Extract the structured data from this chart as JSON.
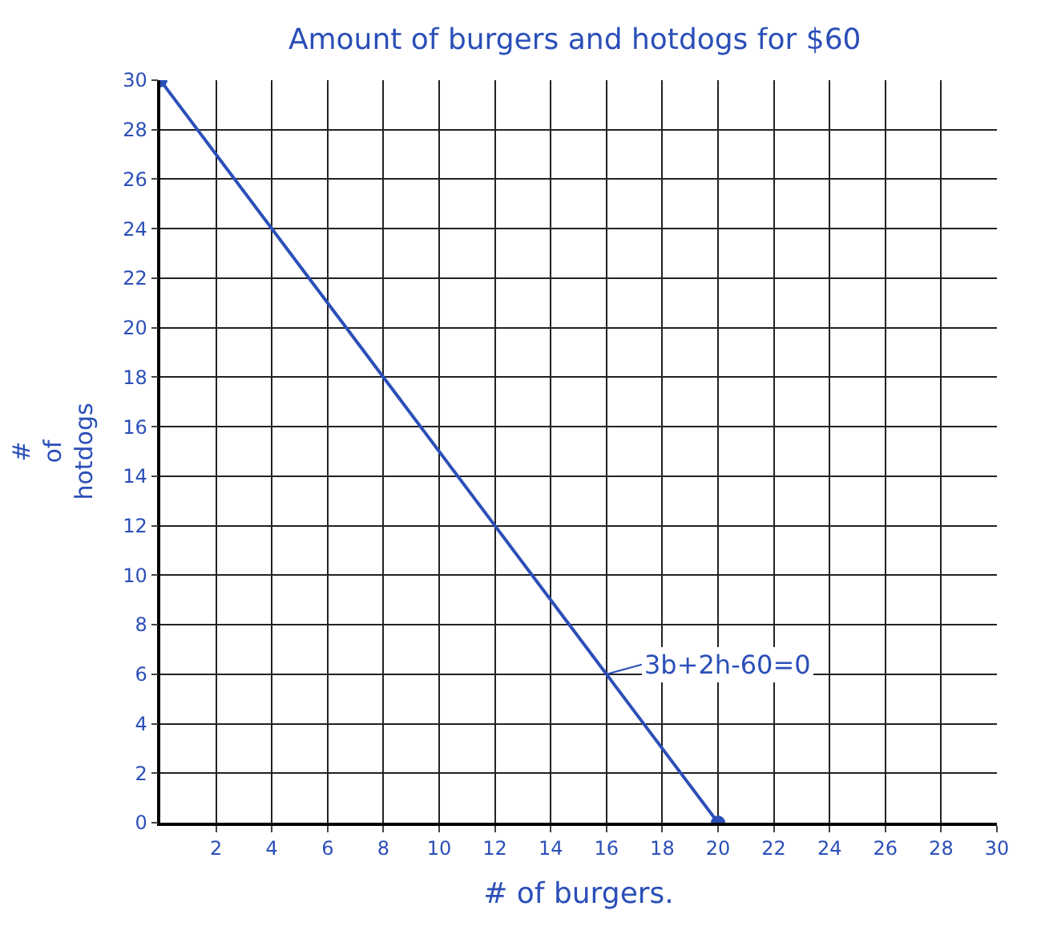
{
  "chart_data": {
    "type": "line",
    "title": "Amount of burgers and hotdogs for $60",
    "xlabel": "# of burgers.",
    "ylabel": "# of hotdogs",
    "x": [
      0,
      20
    ],
    "series": [
      {
        "color": "#2b4fb8",
        "values": [
          30,
          0
        ]
      }
    ],
    "xlim": [
      0,
      30
    ],
    "ylim": [
      0,
      30
    ],
    "xticks": [
      2,
      4,
      6,
      8,
      10,
      12,
      14,
      16,
      18,
      20,
      22,
      24,
      26,
      28,
      30
    ],
    "yticks": [
      0,
      2,
      4,
      6,
      8,
      10,
      12,
      14,
      16,
      18,
      20,
      22,
      24,
      26,
      28,
      30
    ],
    "annotations": [
      {
        "text": "3b+2h-60=0",
        "x": 16,
        "y": 6
      }
    ],
    "grid": true,
    "marker": "circle",
    "line_style": "solid",
    "legend": false
  }
}
